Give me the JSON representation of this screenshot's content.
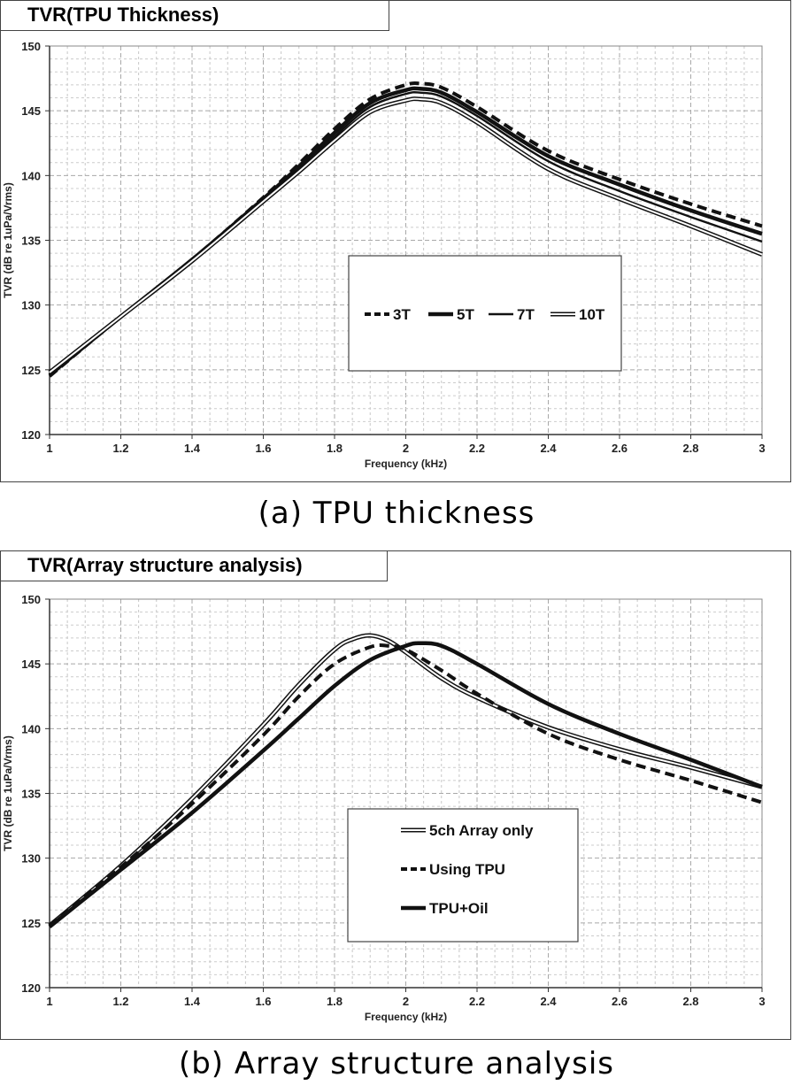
{
  "chart_data": [
    {
      "type": "line",
      "title": "TVR(TPU Thickness)",
      "caption": "(a) TPU thickness",
      "xlabel": "Frequency (kHz)",
      "ylabel": "TVR (dB re 1uPa/Vrms)",
      "xlim": [
        1,
        3
      ],
      "ylim": [
        120,
        150
      ],
      "x_ticks": [
        "1",
        "1.2",
        "1.4",
        "1.6",
        "1.8",
        "2",
        "2.2",
        "2.4",
        "2.6",
        "2.8",
        "3"
      ],
      "y_ticks": [
        "120",
        "125",
        "130",
        "135",
        "140",
        "145",
        "150"
      ],
      "grid": true,
      "legend_position": "center-right",
      "legend_layout": "row",
      "series": [
        {
          "name": "3T",
          "style": "dashed",
          "x": [
            1,
            1.2,
            1.4,
            1.6,
            1.7,
            1.8,
            1.9,
            2,
            2.04,
            2.1,
            2.2,
            2.4,
            2.6,
            2.8,
            3
          ],
          "y": [
            124.5,
            129.1,
            133.5,
            138.3,
            140.9,
            143.6,
            145.9,
            147.0,
            147.1,
            146.8,
            145.3,
            141.9,
            139.7,
            137.8,
            136.1
          ]
        },
        {
          "name": "5T",
          "style": "thick",
          "x": [
            1,
            1.2,
            1.4,
            1.6,
            1.7,
            1.8,
            1.9,
            2,
            2.04,
            2.1,
            2.2,
            2.4,
            2.6,
            2.8,
            3
          ],
          "y": [
            124.6,
            129.1,
            133.5,
            138.2,
            140.7,
            143.3,
            145.6,
            146.6,
            146.7,
            146.4,
            144.9,
            141.5,
            139.3,
            137.3,
            135.5
          ]
        },
        {
          "name": "7T",
          "style": "solid",
          "x": [
            1,
            1.2,
            1.4,
            1.6,
            1.7,
            1.8,
            1.9,
            2,
            2.04,
            2.1,
            2.2,
            2.4,
            2.6,
            2.8,
            3
          ],
          "y": [
            124.7,
            129.1,
            133.5,
            138.1,
            140.5,
            143.0,
            145.3,
            146.3,
            146.4,
            146.1,
            144.6,
            141.1,
            138.8,
            136.8,
            134.9
          ]
        },
        {
          "name": "10T",
          "style": "double",
          "x": [
            1,
            1.2,
            1.4,
            1.6,
            1.7,
            1.8,
            1.9,
            2,
            2.04,
            2.1,
            2.2,
            2.4,
            2.6,
            2.8,
            3
          ],
          "y": [
            124.8,
            129.1,
            133.4,
            138.0,
            140.3,
            142.7,
            144.9,
            145.8,
            145.9,
            145.6,
            144.1,
            140.5,
            138.2,
            136.1,
            133.9
          ]
        }
      ]
    },
    {
      "type": "line",
      "title": "TVR(Array structure analysis)",
      "caption": "(b) Array structure analysis",
      "xlabel": "Frequency (kHz)",
      "ylabel": "TVR (dB re 1uPa/Vrms)",
      "xlim": [
        1,
        3
      ],
      "ylim": [
        120,
        150
      ],
      "x_ticks": [
        "1",
        "1.2",
        "1.4",
        "1.6",
        "1.8",
        "2",
        "2.2",
        "2.4",
        "2.6",
        "2.8",
        "3"
      ],
      "y_ticks": [
        "120",
        "125",
        "130",
        "135",
        "140",
        "145",
        "150"
      ],
      "grid": true,
      "legend_position": "bottom-center",
      "legend_layout": "column",
      "series": [
        {
          "name": "5ch Array only",
          "style": "double",
          "x": [
            1,
            1.2,
            1.4,
            1.6,
            1.7,
            1.8,
            1.85,
            1.9,
            1.95,
            2,
            2.1,
            2.2,
            2.4,
            2.6,
            2.8,
            3
          ],
          "y": [
            124.8,
            129.4,
            134.6,
            140.3,
            143.4,
            146.1,
            146.9,
            147.2,
            146.8,
            145.9,
            143.9,
            142.4,
            140.1,
            138.4,
            137.0,
            135.5
          ]
        },
        {
          "name": "Using TPU",
          "style": "dashed",
          "x": [
            1,
            1.2,
            1.4,
            1.6,
            1.7,
            1.8,
            1.9,
            1.95,
            2,
            2.1,
            2.2,
            2.4,
            2.6,
            2.8,
            3
          ],
          "y": [
            124.8,
            129.3,
            134.2,
            139.5,
            142.5,
            145.0,
            146.3,
            146.4,
            146.1,
            144.5,
            142.7,
            139.6,
            137.6,
            136.0,
            134.3
          ]
        },
        {
          "name": "TPU+Oil",
          "style": "thick",
          "x": [
            1,
            1.2,
            1.4,
            1.6,
            1.7,
            1.8,
            1.9,
            2,
            2.04,
            2.1,
            2.2,
            2.4,
            2.6,
            2.8,
            3
          ],
          "y": [
            124.7,
            129.1,
            133.5,
            138.3,
            140.8,
            143.3,
            145.3,
            146.4,
            146.6,
            146.4,
            145.0,
            141.9,
            139.6,
            137.6,
            135.5
          ]
        }
      ]
    }
  ]
}
